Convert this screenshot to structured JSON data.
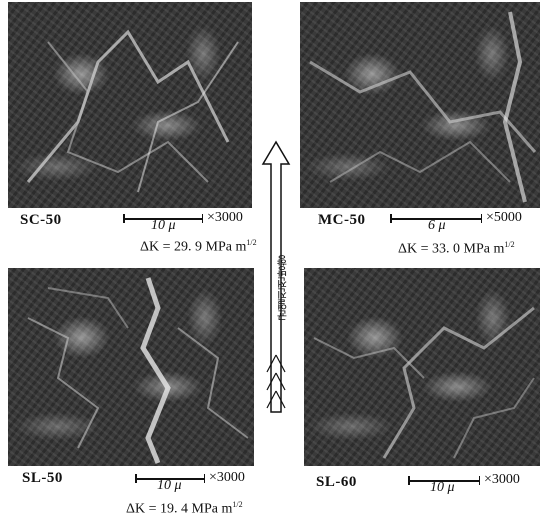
{
  "panels": [
    {
      "id": "sc50",
      "label": "SC-50",
      "scale_length": "10 μ",
      "magnification": "×3000",
      "delta_k": "ΔK = 29. 9  MPa m",
      "delta_k_exp": "1/2"
    },
    {
      "id": "mc50",
      "label": "MC-50",
      "scale_length": "6 μ",
      "magnification": "×5000",
      "delta_k": "ΔK = 33. 0  MPa m",
      "delta_k_exp": "1/2"
    },
    {
      "id": "sl50",
      "label": "SL-50",
      "scale_length": "10 μ",
      "magnification": "×3000",
      "delta_k": "ΔK = 19. 4  MPa m",
      "delta_k_exp": "1/2"
    },
    {
      "id": "sl60",
      "label": "SL-60",
      "scale_length": "10 μ",
      "magnification": "×3000",
      "delta_k": "",
      "delta_k_exp": ""
    }
  ],
  "arrow": {
    "text": "균열진전방향"
  },
  "colors": {
    "micrograph_base": "#3a3a3a",
    "text": "#111111"
  }
}
